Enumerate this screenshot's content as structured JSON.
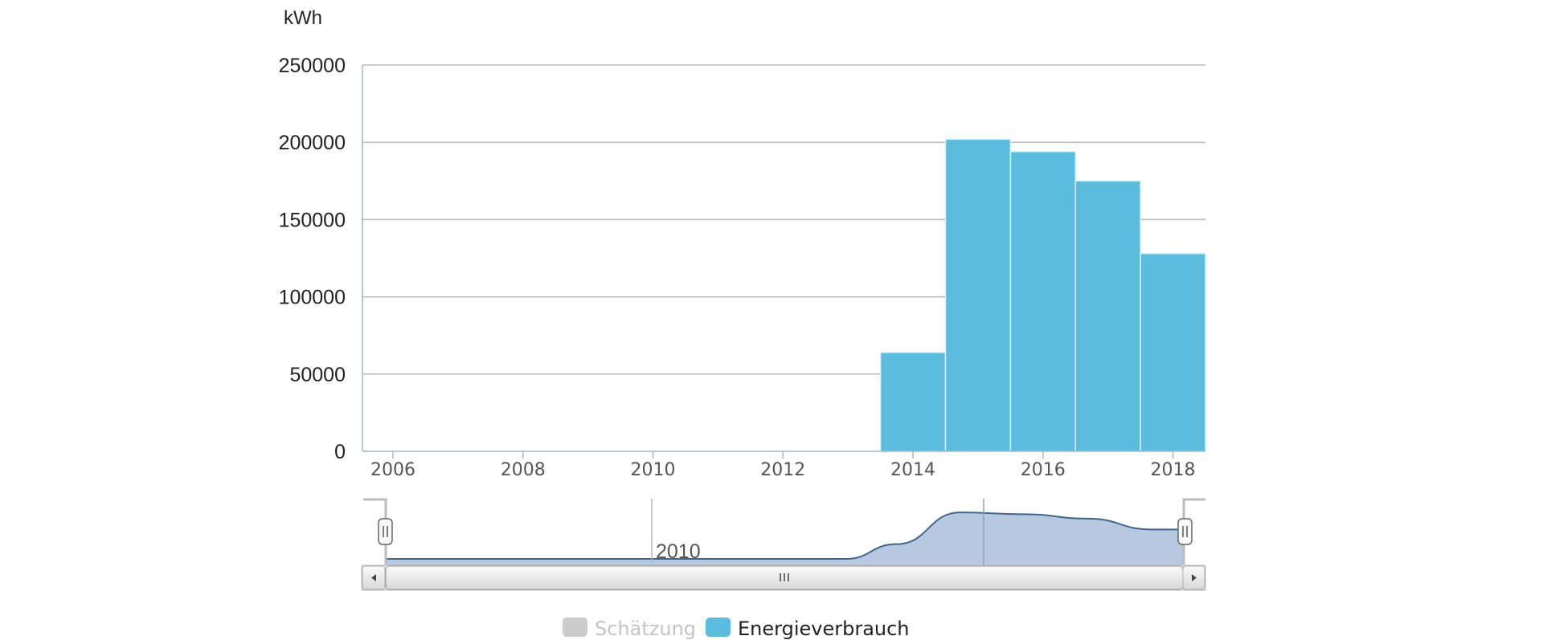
{
  "chart_data": {
    "type": "bar",
    "ylabel": "kWh",
    "ylim": [
      0,
      250000
    ],
    "yticks": [
      "0",
      "50000",
      "100000",
      "150000",
      "200000",
      "250000"
    ],
    "xlim": [
      2005.53,
      2018.5
    ],
    "xticks": [
      "2006",
      "2008",
      "2010",
      "2012",
      "2014",
      "2016",
      "2018"
    ],
    "grid": true,
    "series": [
      {
        "name": "Energieverbrauch",
        "color": "#5bbcdd",
        "x": [
          2014,
          2015,
          2016,
          2017,
          2018
        ],
        "values": [
          64000,
          202000,
          194000,
          175000,
          128000
        ]
      },
      {
        "name": "Schätzung",
        "color": "#cccccc",
        "x": [],
        "values": []
      }
    ],
    "navigator": {
      "label": "2010",
      "line_color": "#3d6590",
      "fill_color": "#b6c9e0"
    },
    "legend": {
      "placement": "bottom",
      "items": [
        {
          "label": "Schätzung",
          "color": "#cccccc",
          "text_color": "#c4c4c4"
        },
        {
          "label": "Energieverbrauch",
          "color": "#5bbcdd",
          "text_color": "#222222"
        }
      ]
    }
  },
  "scrollbar": {
    "left_arrow_icon": "arrow-left-icon",
    "right_arrow_icon": "arrow-right-icon",
    "thumb_grip_icon": "grip-icon"
  }
}
